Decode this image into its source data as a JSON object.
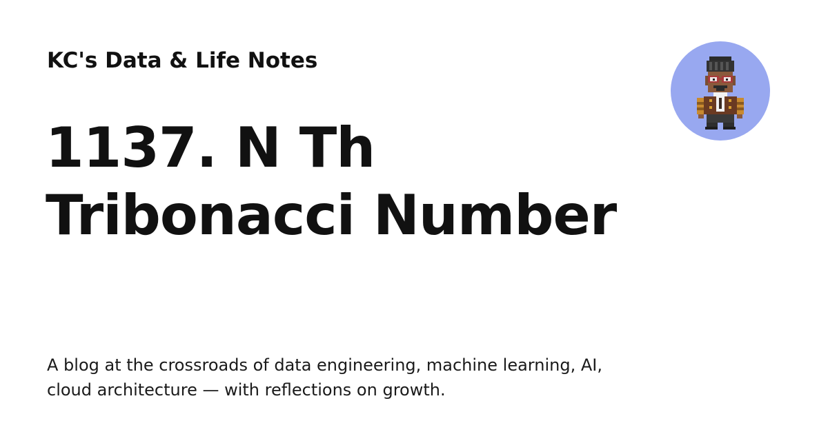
{
  "header": {
    "site_name": "KC's Data & Life Notes"
  },
  "post": {
    "title": "1137. N Th Tribonacci Number",
    "description": "A blog at the crossroads of data engineering, machine learning, AI, cloud architecture — with reflections on growth."
  },
  "avatar": {
    "icon": "pixel-art-person-icon",
    "background_color": "#98a8f0"
  }
}
